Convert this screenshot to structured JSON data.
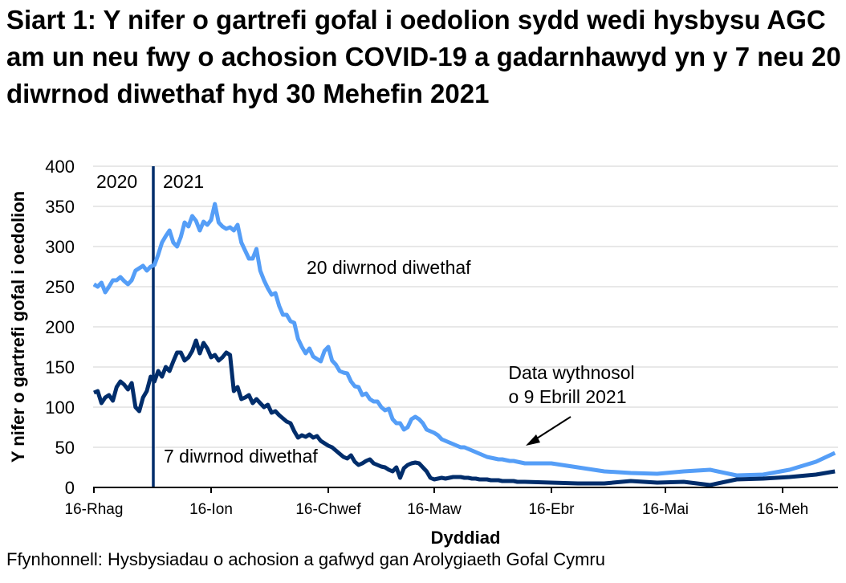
{
  "title": "Siart 1: Y nifer o gartrefi gofal i oedolion sydd wedi hysbysu AGC am un neu fwy o achosion COVID-19 a gadarnhawyd yn y 7 neu 20 diwrnod diwethaf hyd 30 Mehefin 2021",
  "source": "Ffynhonnell: Hysbysiadau o achosion a gafwyd gan Arolygiaeth Gofal Cymru",
  "colors": {
    "series_20": "#559EF7",
    "series_7": "#002D6B",
    "divider": "#002D6B",
    "grid": "#E8E8E8"
  },
  "chart_data": {
    "type": "line",
    "title": "Siart 1: Y nifer o gartrefi gofal i oedolion sydd wedi hysbysu AGC am un neu fwy o achosion COVID-19 a gadarnhawyd yn y 7 neu 20 diwrnod diwethaf hyd 30 Mehefin 2021",
    "xlabel": "Dyddiad",
    "ylabel": "Y nifer o gartrefi gofal i oedolion",
    "ylim": [
      0,
      400
    ],
    "yticks": [
      "0",
      "50",
      "100",
      "150",
      "200",
      "250",
      "300",
      "350",
      "400"
    ],
    "xticks": [
      "16-Rhag",
      "16-Ion",
      "16-Chwef",
      "16-Maw",
      "16-Ebr",
      "16-Mai",
      "16-Meh"
    ],
    "grid": true,
    "legend": "inline annotations",
    "annotations": {
      "year_left": "2020",
      "year_right": "2021",
      "label_20": "20 diwrnod diwethaf",
      "label_7": "7 diwrnod diwethaf",
      "weekly_line1": "Data wythnosol",
      "weekly_line2": "o 9 Ebrill 2021"
    },
    "x_note": "x values are days since 16 Dec 2020; daily data until 9 Apr 2021, weekly thereafter",
    "series": [
      {
        "name": "20 diwrnod diwethaf",
        "x": [
          0,
          1,
          2,
          3,
          4,
          5,
          6,
          7,
          8,
          9,
          10,
          11,
          12,
          13,
          14,
          15,
          16,
          17,
          18,
          19,
          20,
          21,
          22,
          23,
          24,
          25,
          26,
          27,
          28,
          29,
          30,
          31,
          32,
          33,
          34,
          35,
          36,
          37,
          38,
          39,
          40,
          41,
          42,
          43,
          44,
          45,
          46,
          47,
          48,
          49,
          50,
          51,
          52,
          53,
          54,
          55,
          56,
          57,
          58,
          59,
          60,
          61,
          62,
          63,
          64,
          65,
          66,
          67,
          68,
          69,
          70,
          71,
          72,
          73,
          74,
          75,
          76,
          77,
          78,
          79,
          80,
          81,
          82,
          83,
          84,
          85,
          86,
          87,
          88,
          89,
          90,
          91,
          92,
          93,
          94,
          95,
          96,
          97,
          98,
          99,
          100,
          101,
          102,
          103,
          104,
          105,
          106,
          107,
          108,
          109,
          110,
          111,
          112,
          114,
          121,
          128,
          135,
          142,
          149,
          156,
          163,
          170,
          177,
          184,
          191,
          196
        ],
        "values": [
          253,
          250,
          255,
          243,
          250,
          258,
          258,
          262,
          257,
          253,
          258,
          270,
          273,
          276,
          270,
          275,
          277,
          290,
          305,
          313,
          320,
          305,
          300,
          312,
          330,
          325,
          338,
          332,
          320,
          331,
          327,
          333,
          353,
          330,
          325,
          322,
          324,
          320,
          327,
          305,
          295,
          285,
          285,
          297,
          270,
          258,
          248,
          240,
          242,
          226,
          215,
          215,
          207,
          205,
          185,
          175,
          167,
          173,
          163,
          160,
          157,
          170,
          175,
          158,
          153,
          145,
          143,
          142,
          132,
          126,
          125,
          115,
          117,
          110,
          107,
          107,
          100,
          96,
          98,
          85,
          80,
          80,
          72,
          75,
          85,
          88,
          85,
          80,
          72,
          70,
          68,
          65,
          60,
          58,
          56,
          54,
          52,
          50,
          50,
          48,
          46,
          44,
          42,
          40,
          38,
          37,
          36,
          35,
          35,
          34,
          33,
          33,
          32,
          30,
          30,
          25,
          20,
          18,
          17,
          20,
          22,
          15,
          16,
          22,
          32,
          43
        ]
      },
      {
        "name": "7 diwrnod diwethaf",
        "x": [
          0,
          1,
          2,
          3,
          4,
          5,
          6,
          7,
          8,
          9,
          10,
          11,
          12,
          13,
          14,
          15,
          16,
          17,
          18,
          19,
          20,
          21,
          22,
          23,
          24,
          25,
          26,
          27,
          28,
          29,
          30,
          31,
          32,
          33,
          34,
          35,
          36,
          37,
          38,
          39,
          40,
          41,
          42,
          43,
          44,
          45,
          46,
          47,
          48,
          49,
          50,
          51,
          52,
          53,
          54,
          55,
          56,
          57,
          58,
          59,
          60,
          61,
          62,
          63,
          64,
          65,
          66,
          67,
          68,
          69,
          70,
          71,
          72,
          73,
          74,
          75,
          76,
          77,
          78,
          79,
          80,
          81,
          82,
          83,
          84,
          85,
          86,
          87,
          88,
          89,
          90,
          91,
          92,
          93,
          94,
          95,
          96,
          97,
          98,
          99,
          100,
          101,
          102,
          103,
          104,
          105,
          106,
          107,
          108,
          109,
          110,
          111,
          112,
          114,
          121,
          128,
          135,
          142,
          149,
          156,
          163,
          170,
          177,
          184,
          191,
          196
        ],
        "values": [
          118,
          120,
          105,
          112,
          115,
          108,
          125,
          132,
          128,
          122,
          130,
          100,
          95,
          112,
          120,
          138,
          132,
          145,
          138,
          150,
          145,
          157,
          168,
          168,
          158,
          162,
          170,
          183,
          167,
          180,
          173,
          162,
          165,
          158,
          162,
          168,
          165,
          120,
          125,
          110,
          112,
          115,
          105,
          110,
          105,
          100,
          103,
          93,
          95,
          90,
          86,
          82,
          80,
          70,
          62,
          65,
          63,
          66,
          62,
          64,
          58,
          55,
          52,
          50,
          46,
          42,
          38,
          36,
          40,
          32,
          28,
          30,
          33,
          35,
          30,
          28,
          26,
          25,
          22,
          20,
          25,
          12,
          24,
          28,
          30,
          31,
          30,
          25,
          20,
          12,
          10,
          11,
          12,
          11,
          12,
          13,
          13,
          13,
          12,
          12,
          11,
          11,
          10,
          10,
          10,
          9,
          9,
          9,
          8,
          8,
          8,
          8,
          7,
          7,
          6,
          5,
          5,
          8,
          6,
          7,
          3,
          10,
          11,
          13,
          16,
          20
        ]
      }
    ]
  }
}
